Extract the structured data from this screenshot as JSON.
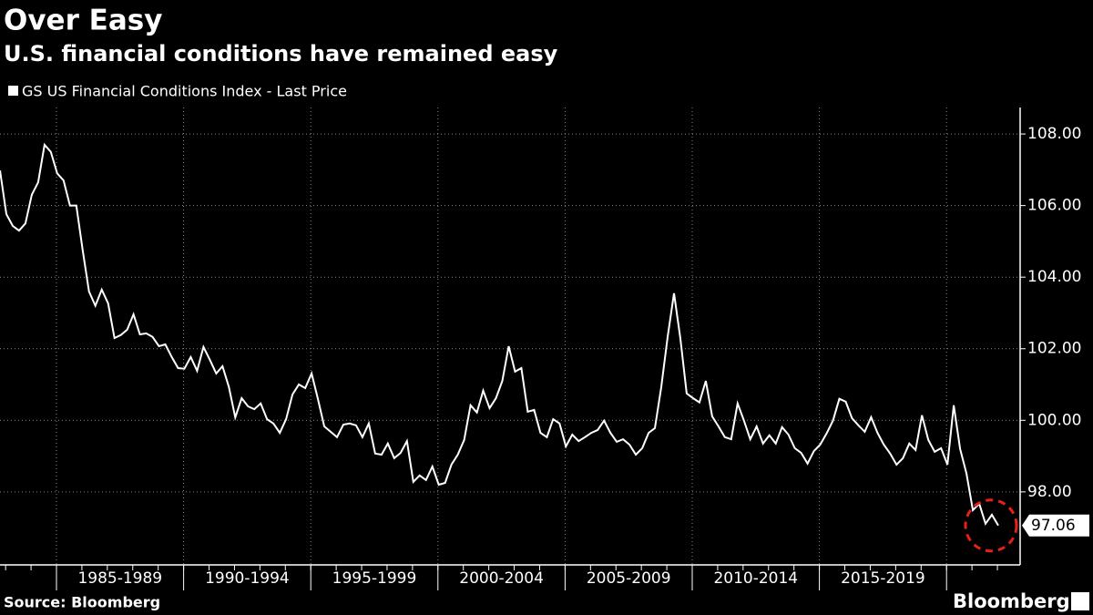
{
  "chart_data": {
    "type": "line",
    "title": "Over Easy",
    "subtitle": "U.S. financial conditions have remained easy",
    "source": "Source: Bloomberg",
    "brand": "Bloomberg",
    "periods": [
      "1985-1989",
      "1990-1994",
      "1995-1999",
      "2000-2004",
      "2005-2009",
      "2010-2014",
      "2015-2019"
    ],
    "ylim": [
      95.96,
      108.74
    ],
    "yticks": [
      {
        "value": 98,
        "label": "98.00"
      },
      {
        "value": 100,
        "label": "100.00"
      },
      {
        "value": 102,
        "label": "102.00"
      },
      {
        "value": 104,
        "label": "104.00"
      },
      {
        "value": 106,
        "label": "106.00"
      },
      {
        "value": 108,
        "label": "108.00"
      }
    ],
    "grid": true,
    "series": [
      {
        "name": "GS US Financial Conditions Index - Last Price",
        "color": "#ffffff",
        "values": [
          106.98,
          105.76,
          105.43,
          105.3,
          105.5,
          106.3,
          106.65,
          107.7,
          107.5,
          106.9,
          106.7,
          106.0,
          106.0,
          104.75,
          103.6,
          103.2,
          103.65,
          103.27,
          102.3,
          102.38,
          102.53,
          102.96,
          102.4,
          102.43,
          102.33,
          102.07,
          102.12,
          101.77,
          101.46,
          101.44,
          101.77,
          101.38,
          102.05,
          101.69,
          101.31,
          101.51,
          100.93,
          100.08,
          100.62,
          100.39,
          100.31,
          100.47,
          100.03,
          99.91,
          99.65,
          100.03,
          100.72,
          101.0,
          100.9,
          101.31,
          100.6,
          99.83,
          99.68,
          99.53,
          99.88,
          99.91,
          99.86,
          99.53,
          99.91,
          99.07,
          99.04,
          99.35,
          98.94,
          99.09,
          99.42,
          98.28,
          98.46,
          98.33,
          98.71,
          98.2,
          98.25,
          98.76,
          99.04,
          99.45,
          100.42,
          100.22,
          100.83,
          100.34,
          100.62,
          101.1,
          102.07,
          101.36,
          101.46,
          100.24,
          100.29,
          99.65,
          99.53,
          100.03,
          99.91,
          99.27,
          99.6,
          99.42,
          99.53,
          99.65,
          99.73,
          99.99,
          99.65,
          99.4,
          99.47,
          99.32,
          99.04,
          99.22,
          99.65,
          99.78,
          100.93,
          102.33,
          103.55,
          102.28,
          100.75,
          100.62,
          100.5,
          101.1,
          100.11,
          99.83,
          99.53,
          99.47,
          100.47,
          99.99,
          99.47,
          99.83,
          99.35,
          99.58,
          99.35,
          99.81,
          99.6,
          99.22,
          99.09,
          98.79,
          99.14,
          99.32,
          99.63,
          99.99,
          100.6,
          100.52,
          100.06,
          99.86,
          99.68,
          100.09,
          99.65,
          99.32,
          99.07,
          98.76,
          98.94,
          99.35,
          99.17,
          100.14,
          99.45,
          99.12,
          99.22,
          98.76,
          100.42,
          99.2,
          98.51,
          97.49,
          97.67,
          97.11,
          97.36,
          97.06
        ]
      }
    ]
  }
}
